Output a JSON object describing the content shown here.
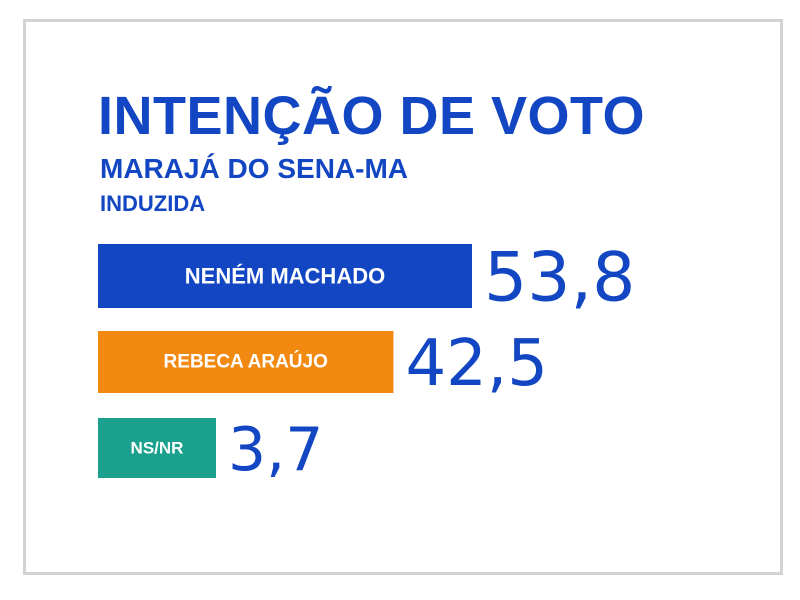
{
  "header": {
    "title": "INTENÇÃO DE VOTO",
    "subtitle": "MARAJÁ DO SENA-MA",
    "subtitle2": "INDUZIDA"
  },
  "colors": {
    "text": "#1246c2",
    "series": [
      "#1246c2",
      "#f28a12",
      "#1aa08c"
    ]
  },
  "chart_data": {
    "type": "bar",
    "orientation": "horizontal",
    "title": "INTENÇÃO DE VOTO",
    "subtitle": "MARAJÁ DO SENA-MA",
    "categories": [
      "NENÉM MACHADO",
      "REBECA ARAÚJO",
      "NS/NR"
    ],
    "values": [
      53.8,
      42.5,
      3.7
    ],
    "value_labels": [
      "53,8",
      "42,5",
      "3,7"
    ],
    "xlim": [
      0,
      53.8
    ],
    "axes_visible": false,
    "grid": false,
    "legend": "none"
  }
}
